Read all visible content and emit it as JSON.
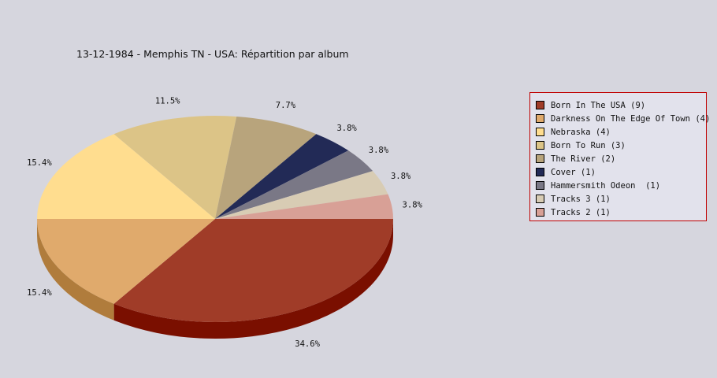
{
  "chart_data": {
    "type": "pie",
    "title": "13-12-1984 - Memphis TN - USA:  Répartition par album",
    "legend_position": "right",
    "slices": [
      {
        "label": "Born In The USA (9)",
        "value": 9,
        "percent_label": "34.6%",
        "color": "#a03c28",
        "dark": "#7a0f00"
      },
      {
        "label": "Darkness On The Edge Of Town (4)",
        "value": 4,
        "percent_label": "15.4%",
        "color": "#e0aa6c",
        "dark": "#b07c3c"
      },
      {
        "label": "Nebraska (4)",
        "value": 4,
        "percent_label": "15.4%",
        "color": "#ffdd8f",
        "dark": "#c8a860"
      },
      {
        "label": "Born To Run (3)",
        "value": 3,
        "percent_label": "11.5%",
        "color": "#dcc487",
        "dark": "#a89458"
      },
      {
        "label": "The River (2)",
        "value": 2,
        "percent_label": "7.7%",
        "color": "#b8a47c",
        "dark": "#867450"
      },
      {
        "label": "Cover (1)",
        "value": 1,
        "percent_label": "3.8%",
        "color": "#222a56",
        "dark": "#12183a"
      },
      {
        "label": "Hammersmith Odeon  (1)",
        "value": 1,
        "percent_label": "3.8%",
        "color": "#7a7886",
        "dark": "#52505c"
      },
      {
        "label": "Tracks 3 (1)",
        "value": 1,
        "percent_label": "3.8%",
        "color": "#d8ccb4",
        "dark": "#a89c84"
      },
      {
        "label": "Tracks 2 (1)",
        "value": 1,
        "percent_label": "3.8%",
        "color": "#d8a096",
        "dark": "#a8706a"
      }
    ]
  }
}
